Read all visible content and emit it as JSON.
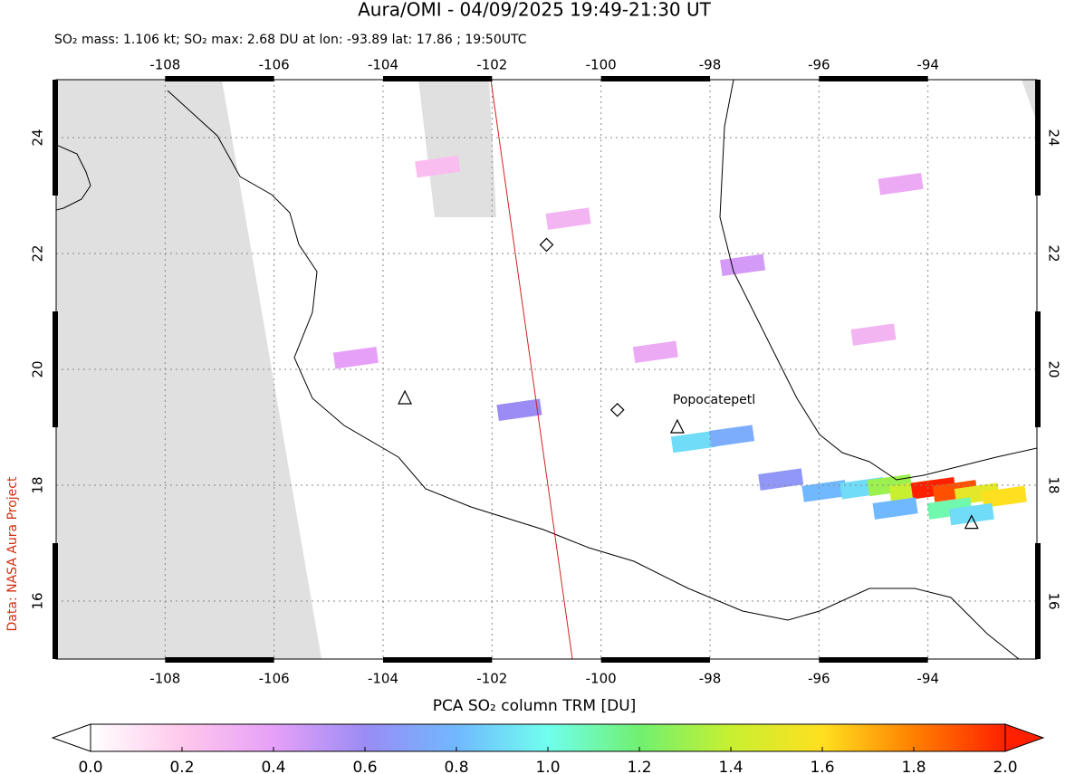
{
  "title": "Aura/OMI - 04/09/2025 19:49-21:30 UT",
  "subtitle": "SO₂ mass: 1.106 kt; SO₂ max: 2.68 DU at lon: -93.89 lat: 17.86 ; 19:50UTC",
  "credit": "Data: NASA Aura Project",
  "map": {
    "lonlim": [
      -110,
      -92
    ],
    "latlim": [
      15,
      25
    ],
    "lonticks": [
      -108,
      -106,
      -104,
      -102,
      -100,
      -98,
      -96,
      -94
    ],
    "latticks": [
      16,
      18,
      20,
      22,
      24
    ],
    "grid": true,
    "volcanoes": [
      {
        "lon": -103.6,
        "lat": 19.5,
        "shape": "triangle"
      },
      {
        "lon": -98.6,
        "lat": 19.0,
        "shape": "triangle",
        "name": "Popocatepetl"
      },
      {
        "lon": -93.2,
        "lat": 17.35,
        "shape": "triangle"
      },
      {
        "lon": -101.0,
        "lat": 22.15,
        "shape": "diamond"
      },
      {
        "lon": -99.7,
        "lat": 19.3,
        "shape": "diamond"
      }
    ],
    "pixels": [
      {
        "lon": -98.3,
        "lat": 18.75,
        "value": 0.9
      },
      {
        "lon": -97.6,
        "lat": 18.85,
        "value": 0.75
      },
      {
        "lon": -96.7,
        "lat": 18.1,
        "value": 0.65
      },
      {
        "lon": -95.9,
        "lat": 17.9,
        "value": 0.8
      },
      {
        "lon": -95.2,
        "lat": 17.95,
        "value": 0.9
      },
      {
        "lon": -94.7,
        "lat": 18.0,
        "value": 1.3
      },
      {
        "lon": -94.3,
        "lat": 17.9,
        "value": 1.4
      },
      {
        "lon": -93.9,
        "lat": 17.95,
        "value": 2.0
      },
      {
        "lon": -93.5,
        "lat": 17.9,
        "value": 1.9
      },
      {
        "lon": -93.1,
        "lat": 17.85,
        "value": 1.5
      },
      {
        "lon": -92.6,
        "lat": 17.8,
        "value": 1.6
      },
      {
        "lon": -93.6,
        "lat": 17.6,
        "value": 1.1
      },
      {
        "lon": -93.2,
        "lat": 17.5,
        "value": 0.9
      },
      {
        "lon": -94.6,
        "lat": 17.6,
        "value": 0.8
      },
      {
        "lon": -101.5,
        "lat": 19.3,
        "value": 0.6
      },
      {
        "lon": -97.4,
        "lat": 21.8,
        "value": 0.45
      },
      {
        "lon": -95.0,
        "lat": 20.6,
        "value": 0.3
      },
      {
        "lon": -99.0,
        "lat": 20.3,
        "value": 0.35
      },
      {
        "lon": -103.0,
        "lat": 23.5,
        "value": 0.25
      },
      {
        "lon": -94.5,
        "lat": 23.2,
        "value": 0.35
      },
      {
        "lon": -100.6,
        "lat": 22.6,
        "value": 0.3
      },
      {
        "lon": -104.5,
        "lat": 20.2,
        "value": 0.4
      }
    ]
  },
  "colorbar": {
    "title": "PCA SO₂ column TRM [DU]",
    "lim": [
      0,
      2
    ],
    "ticks": [
      {
        "value": 0,
        "label": "0.0"
      },
      {
        "value": 0.2,
        "label": "0.2"
      },
      {
        "value": 0.4,
        "label": "0.4"
      },
      {
        "value": 0.6,
        "label": "0.6"
      },
      {
        "value": 0.8,
        "label": "0.8"
      },
      {
        "value": 1,
        "label": "1.0"
      },
      {
        "value": 1.2,
        "label": "1.2"
      },
      {
        "value": 1.4,
        "label": "1.4"
      },
      {
        "value": 1.6,
        "label": "1.6"
      },
      {
        "value": 1.8,
        "label": "1.8"
      },
      {
        "value": 2,
        "label": "2.0"
      }
    ],
    "colors": [
      "#ffffff",
      "#ffc8ec",
      "#e6a0f8",
      "#9a8cf4",
      "#70b8ff",
      "#70ffee",
      "#70f070",
      "#c8f030",
      "#ffe020",
      "#ff8000",
      "#ff2000"
    ]
  }
}
